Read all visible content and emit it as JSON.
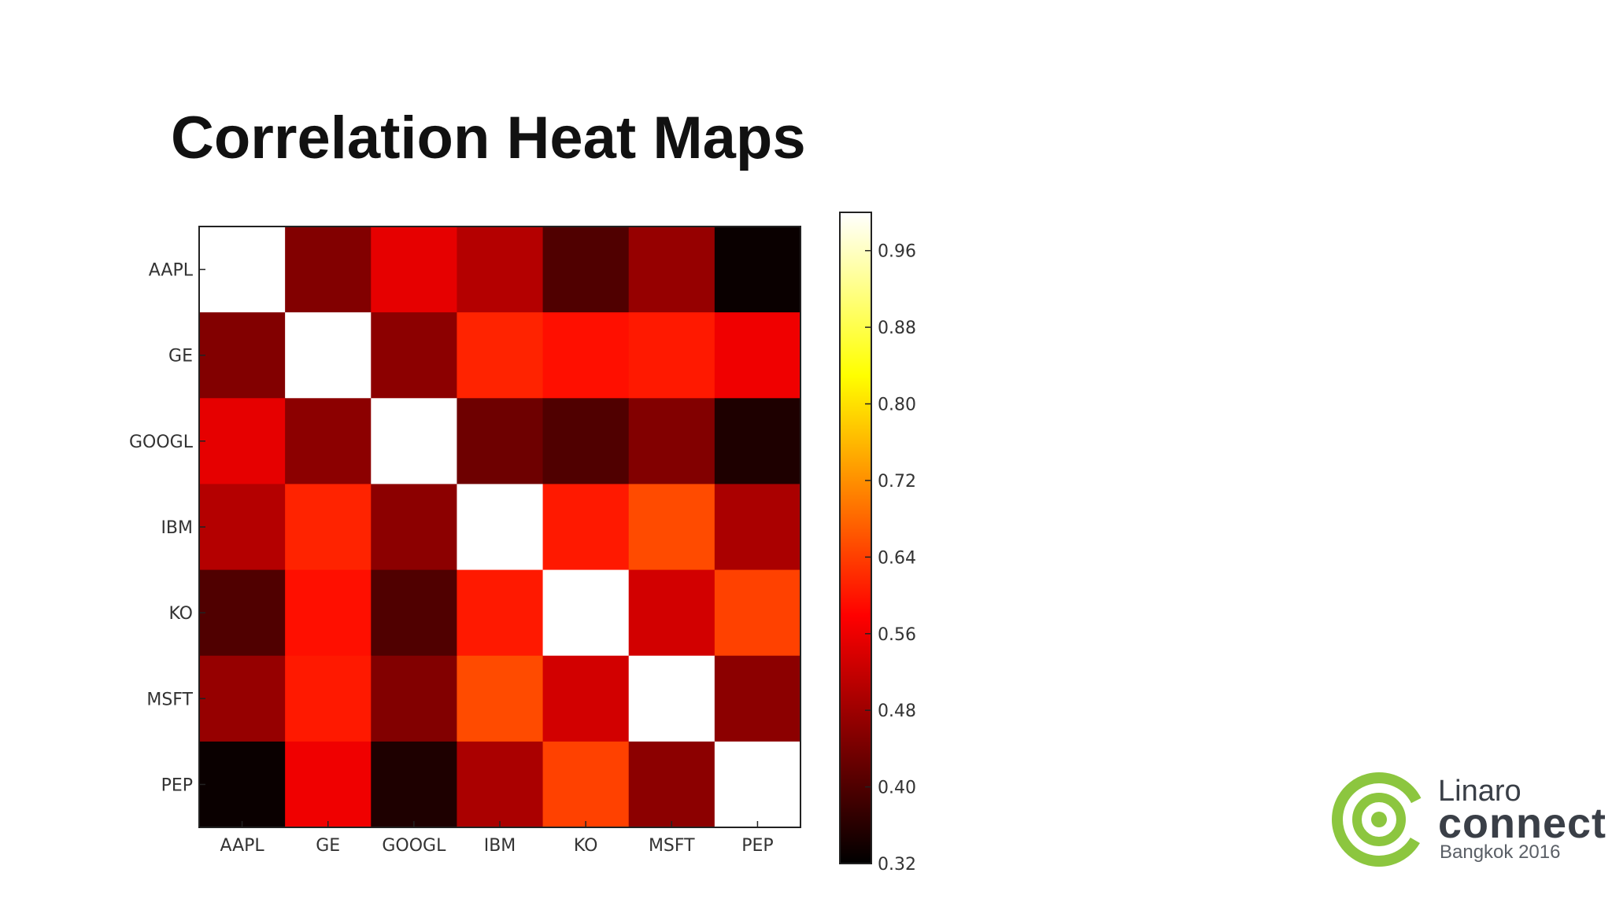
{
  "slide": {
    "title": "Correlation Heat Maps"
  },
  "logo": {
    "line1": "Linaro",
    "line2": "connect",
    "line3": "Bangkok 2016",
    "accent_color": "#8cc63f"
  },
  "chart_data": {
    "type": "heatmap",
    "title": "",
    "xlabel": "",
    "ylabel": "",
    "x_categories": [
      "AAPL",
      "GE",
      "GOOGL",
      "IBM",
      "KO",
      "MSFT",
      "PEP"
    ],
    "y_categories": [
      "AAPL",
      "GE",
      "GOOGL",
      "IBM",
      "KO",
      "MSFT",
      "PEP"
    ],
    "values": [
      [
        1.0,
        0.45,
        0.55,
        0.5,
        0.4,
        0.47,
        0.33
      ],
      [
        0.45,
        1.0,
        0.46,
        0.61,
        0.59,
        0.6,
        0.56
      ],
      [
        0.55,
        0.46,
        1.0,
        0.43,
        0.4,
        0.45,
        0.35
      ],
      [
        0.5,
        0.61,
        0.46,
        1.0,
        0.6,
        0.65,
        0.49
      ],
      [
        0.4,
        0.59,
        0.4,
        0.6,
        1.0,
        0.53,
        0.64
      ],
      [
        0.47,
        0.6,
        0.45,
        0.65,
        0.53,
        1.0,
        0.46
      ],
      [
        0.33,
        0.56,
        0.35,
        0.49,
        0.64,
        0.46,
        1.0
      ]
    ],
    "colormap": "hot",
    "colorbar": {
      "range": [
        0.32,
        1.0
      ],
      "ticks": [
        0.32,
        0.4,
        0.48,
        0.56,
        0.64,
        0.72,
        0.8,
        0.88,
        0.96
      ],
      "tick_labels": [
        "0.32",
        "0.40",
        "0.48",
        "0.56",
        "0.64",
        "0.72",
        "0.80",
        "0.88",
        "0.96"
      ]
    },
    "grid": false
  }
}
